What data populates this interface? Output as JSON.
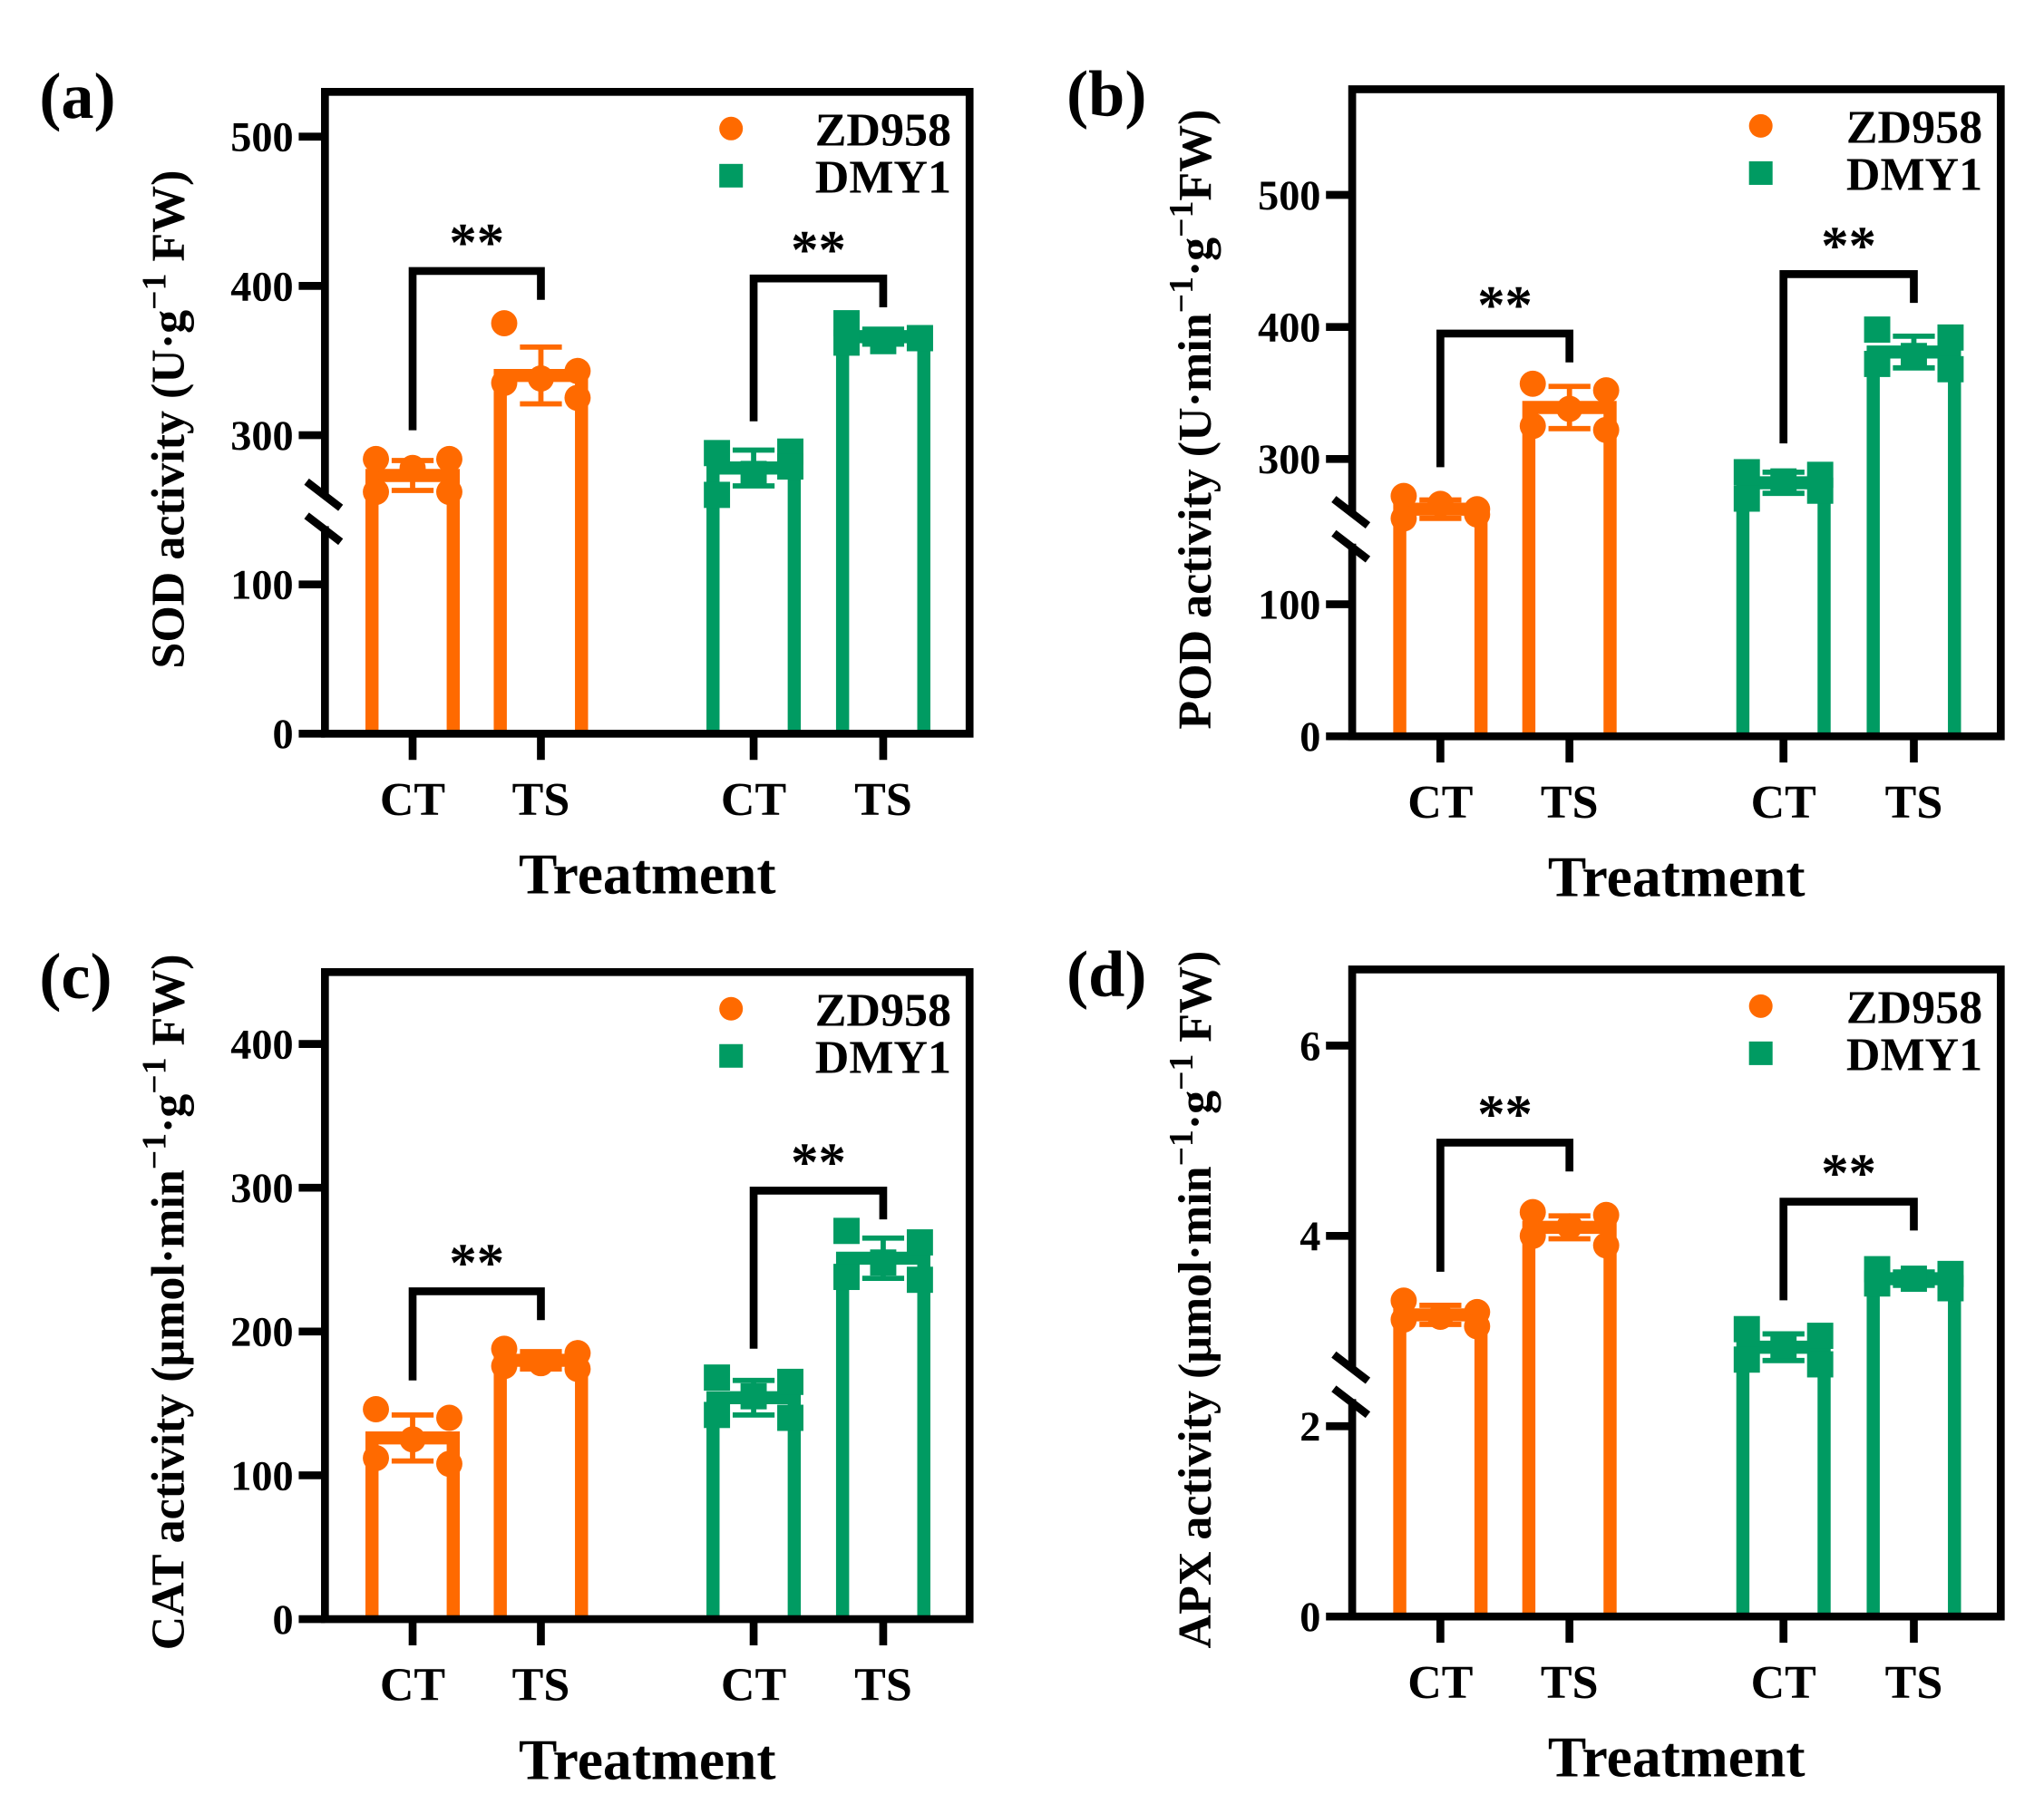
{
  "colors": {
    "ZD958": "#FF6A00",
    "DMY1": "#009B62",
    "axis": "#000000"
  },
  "chart_data": [
    {
      "type": "bar",
      "panel_label": "(a)",
      "ylabel_parts": [
        {
          "t": "SOD activity (U·g"
        },
        {
          "t": "−1",
          "sup": true
        },
        {
          "t": " FW)"
        }
      ],
      "xlabel": "Treatment",
      "categories": [
        "CT",
        "TS",
        "CT",
        "TS"
      ],
      "yticks": [
        0,
        100,
        300,
        400,
        500
      ],
      "ylim": [
        0,
        530
      ],
      "y_break": [
        125,
        225
      ],
      "legend": {
        "placement": "top-right",
        "entries": [
          "ZD958",
          "DMY1"
        ]
      },
      "series": [
        {
          "name": "ZD958",
          "marker": "circle",
          "groups": [
            {
              "cat": 0,
              "mean": 273,
              "sd": 10,
              "points": [
                284,
                284,
                278,
                262,
                262
              ]
            },
            {
              "cat": 1,
              "mean": 340,
              "sd": 19,
              "points": [
                375,
                343,
                338,
                335,
                325
              ]
            }
          ]
        },
        {
          "name": "DMY1",
          "marker": "square",
          "groups": [
            {
              "cat": 2,
              "mean": 278,
              "sd": 12,
              "points": [
                288,
                289,
                274,
                260,
                279
              ]
            },
            {
              "cat": 3,
              "mean": 366,
              "sd": 5,
              "points": [
                375,
                365,
                363,
                362,
                365
              ]
            }
          ]
        }
      ],
      "significance": [
        {
          "from": 0,
          "to": 1,
          "label": "**",
          "y": 410
        },
        {
          "from": 2,
          "to": 3,
          "label": "**",
          "y": 405
        }
      ]
    },
    {
      "type": "bar",
      "panel_label": "(b)",
      "ylabel_parts": [
        {
          "t": "POD activity (U·min"
        },
        {
          "t": "−1",
          "sup": true
        },
        {
          "t": "·g"
        },
        {
          "t": "−1",
          "sup": true
        },
        {
          "t": "FW)"
        }
      ],
      "xlabel": "Treatment",
      "categories": [
        "CT",
        "TS",
        "CT",
        "TS"
      ],
      "yticks": [
        0,
        100,
        300,
        400,
        500
      ],
      "ylim": [
        0,
        580
      ],
      "y_break": [
        130,
        220
      ],
      "legend": {
        "placement": "top-right",
        "entries": [
          "ZD958",
          "DMY1"
        ]
      },
      "series": [
        {
          "name": "ZD958",
          "marker": "circle",
          "groups": [
            {
              "cat": 0,
              "mean": 262,
              "sd": 7,
              "points": [
                272,
                262,
                266,
                255,
                258
              ]
            },
            {
              "cat": 1,
              "mean": 339,
              "sd": 16,
              "points": [
                357,
                352,
                338,
                325,
                322
              ]
            }
          ]
        },
        {
          "name": "DMY1",
          "marker": "square",
          "groups": [
            {
              "cat": 2,
              "mean": 282,
              "sd": 8,
              "points": [
                290,
                288,
                283,
                270,
                276
              ]
            },
            {
              "cat": 3,
              "mean": 381,
              "sd": 12,
              "points": [
                398,
                392,
                378,
                372,
                368
              ]
            }
          ]
        }
      ],
      "significance": [
        {
          "from": 0,
          "to": 1,
          "label": "**",
          "y": 395
        },
        {
          "from": 2,
          "to": 3,
          "label": "**",
          "y": 440
        }
      ]
    },
    {
      "type": "bar",
      "panel_label": "(c)",
      "ylabel_parts": [
        {
          "t": "CAT activity (μmol·min"
        },
        {
          "t": "−1",
          "sup": true
        },
        {
          "t": "·g"
        },
        {
          "t": "−1",
          "sup": true
        },
        {
          "t": " FW)"
        }
      ],
      "xlabel": "Treatment",
      "categories": [
        "CT",
        "TS",
        "CT",
        "TS"
      ],
      "yticks": [
        0,
        100,
        200,
        300,
        400
      ],
      "ylim": [
        0,
        450
      ],
      "y_break": null,
      "legend": {
        "placement": "top-right",
        "entries": [
          "ZD958",
          "DMY1"
        ]
      },
      "series": [
        {
          "name": "ZD958",
          "marker": "circle",
          "groups": [
            {
              "cat": 0,
              "mean": 126,
              "sd": 16,
              "points": [
                146,
                140,
                125,
                112,
                108
              ]
            },
            {
              "cat": 1,
              "mean": 180,
              "sd": 6,
              "points": [
                188,
                185,
                178,
                176,
                174
              ]
            }
          ]
        },
        {
          "name": "DMY1",
          "marker": "square",
          "groups": [
            {
              "cat": 2,
              "mean": 154,
              "sd": 12,
              "points": [
                168,
                165,
                155,
                142,
                140
              ]
            },
            {
              "cat": 3,
              "mean": 251,
              "sd": 14,
              "points": [
                270,
                262,
                248,
                238,
                236
              ]
            }
          ]
        }
      ],
      "significance": [
        {
          "from": 0,
          "to": 1,
          "label": "**",
          "y": 228
        },
        {
          "from": 2,
          "to": 3,
          "label": "**",
          "y": 298
        }
      ]
    },
    {
      "type": "bar",
      "panel_label": "(d)",
      "ylabel_parts": [
        {
          "t": "APX activity (μmol·min"
        },
        {
          "t": "−1",
          "sup": true
        },
        {
          "t": "·g"
        },
        {
          "t": "−1",
          "sup": true
        },
        {
          "t": " FW)"
        }
      ],
      "xlabel": "Treatment",
      "categories": [
        "CT",
        "TS",
        "CT",
        "TS"
      ],
      "yticks": [
        0,
        2,
        4,
        6
      ],
      "ylim": [
        0,
        6.8
      ],
      "y_break": [
        2.45,
        2.45
      ],
      "legend": {
        "placement": "top-right",
        "entries": [
          "ZD958",
          "DMY1"
        ]
      },
      "series": [
        {
          "name": "ZD958",
          "marker": "circle",
          "groups": [
            {
              "cat": 0,
              "mean": 3.17,
              "sd": 0.1,
              "points": [
                3.32,
                3.2,
                3.15,
                3.12,
                3.05
              ]
            },
            {
              "cat": 1,
              "mean": 4.09,
              "sd": 0.12,
              "points": [
                4.25,
                4.22,
                4.1,
                4.0,
                3.9
              ]
            }
          ]
        },
        {
          "name": "DMY1",
          "marker": "square",
          "groups": [
            {
              "cat": 2,
              "mean": 2.83,
              "sd": 0.14,
              "points": [
                3.02,
                2.95,
                2.85,
                2.7,
                2.65
              ]
            },
            {
              "cat": 3,
              "mean": 3.55,
              "sd": 0.07,
              "points": [
                3.65,
                3.6,
                3.55,
                3.5,
                3.45
              ]
            }
          ]
        }
      ],
      "significance": [
        {
          "from": 0,
          "to": 1,
          "label": "**",
          "y": 4.98
        },
        {
          "from": 2,
          "to": 3,
          "label": "**",
          "y": 4.36
        }
      ]
    }
  ]
}
